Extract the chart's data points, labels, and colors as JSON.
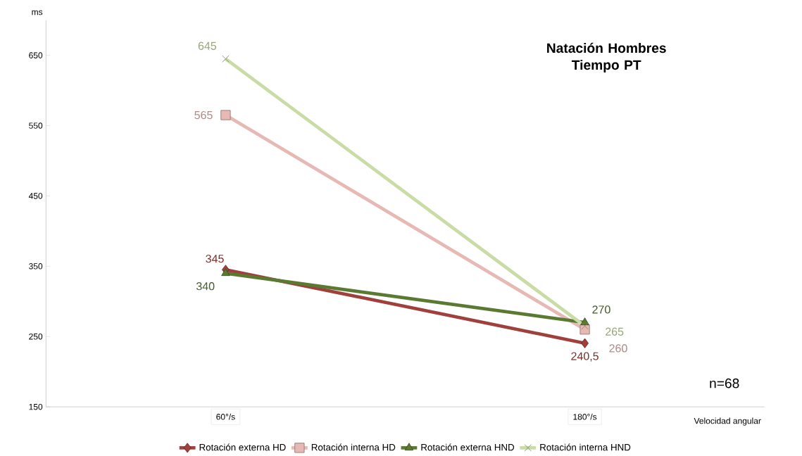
{
  "chart_data": {
    "type": "line",
    "title": "Natación Hombres Tiempo PT",
    "ylabel": "ms",
    "xlabel": "Velocidad angular",
    "categories": [
      "60°/s",
      "180°/s"
    ],
    "ylim": [
      150,
      700
    ],
    "yticks": [
      150,
      250,
      350,
      450,
      550,
      650
    ],
    "legend": "bottom",
    "grid": false,
    "line_style": "solid",
    "annotations": [
      "n=68"
    ],
    "series": [
      {
        "name": "Rotación externa HD",
        "color": "#a0403c",
        "marker": "diamond",
        "values": [
          345,
          240.5
        ],
        "value_labels": [
          "345",
          "240,5"
        ]
      },
      {
        "name": "Rotación interna HD",
        "color": "#e6b9b4",
        "marker": "square",
        "values": [
          565,
          260
        ],
        "value_labels": [
          "565",
          "260"
        ]
      },
      {
        "name": "Rotación externa HND",
        "color": "#5a7a32",
        "marker": "triangle",
        "values": [
          340,
          270
        ],
        "value_labels": [
          "340",
          "270"
        ]
      },
      {
        "name": "Rotación interna HND",
        "color": "#c9dca6",
        "marker": "cross",
        "values": [
          645,
          265
        ],
        "value_labels": [
          "645",
          "265"
        ]
      }
    ]
  }
}
